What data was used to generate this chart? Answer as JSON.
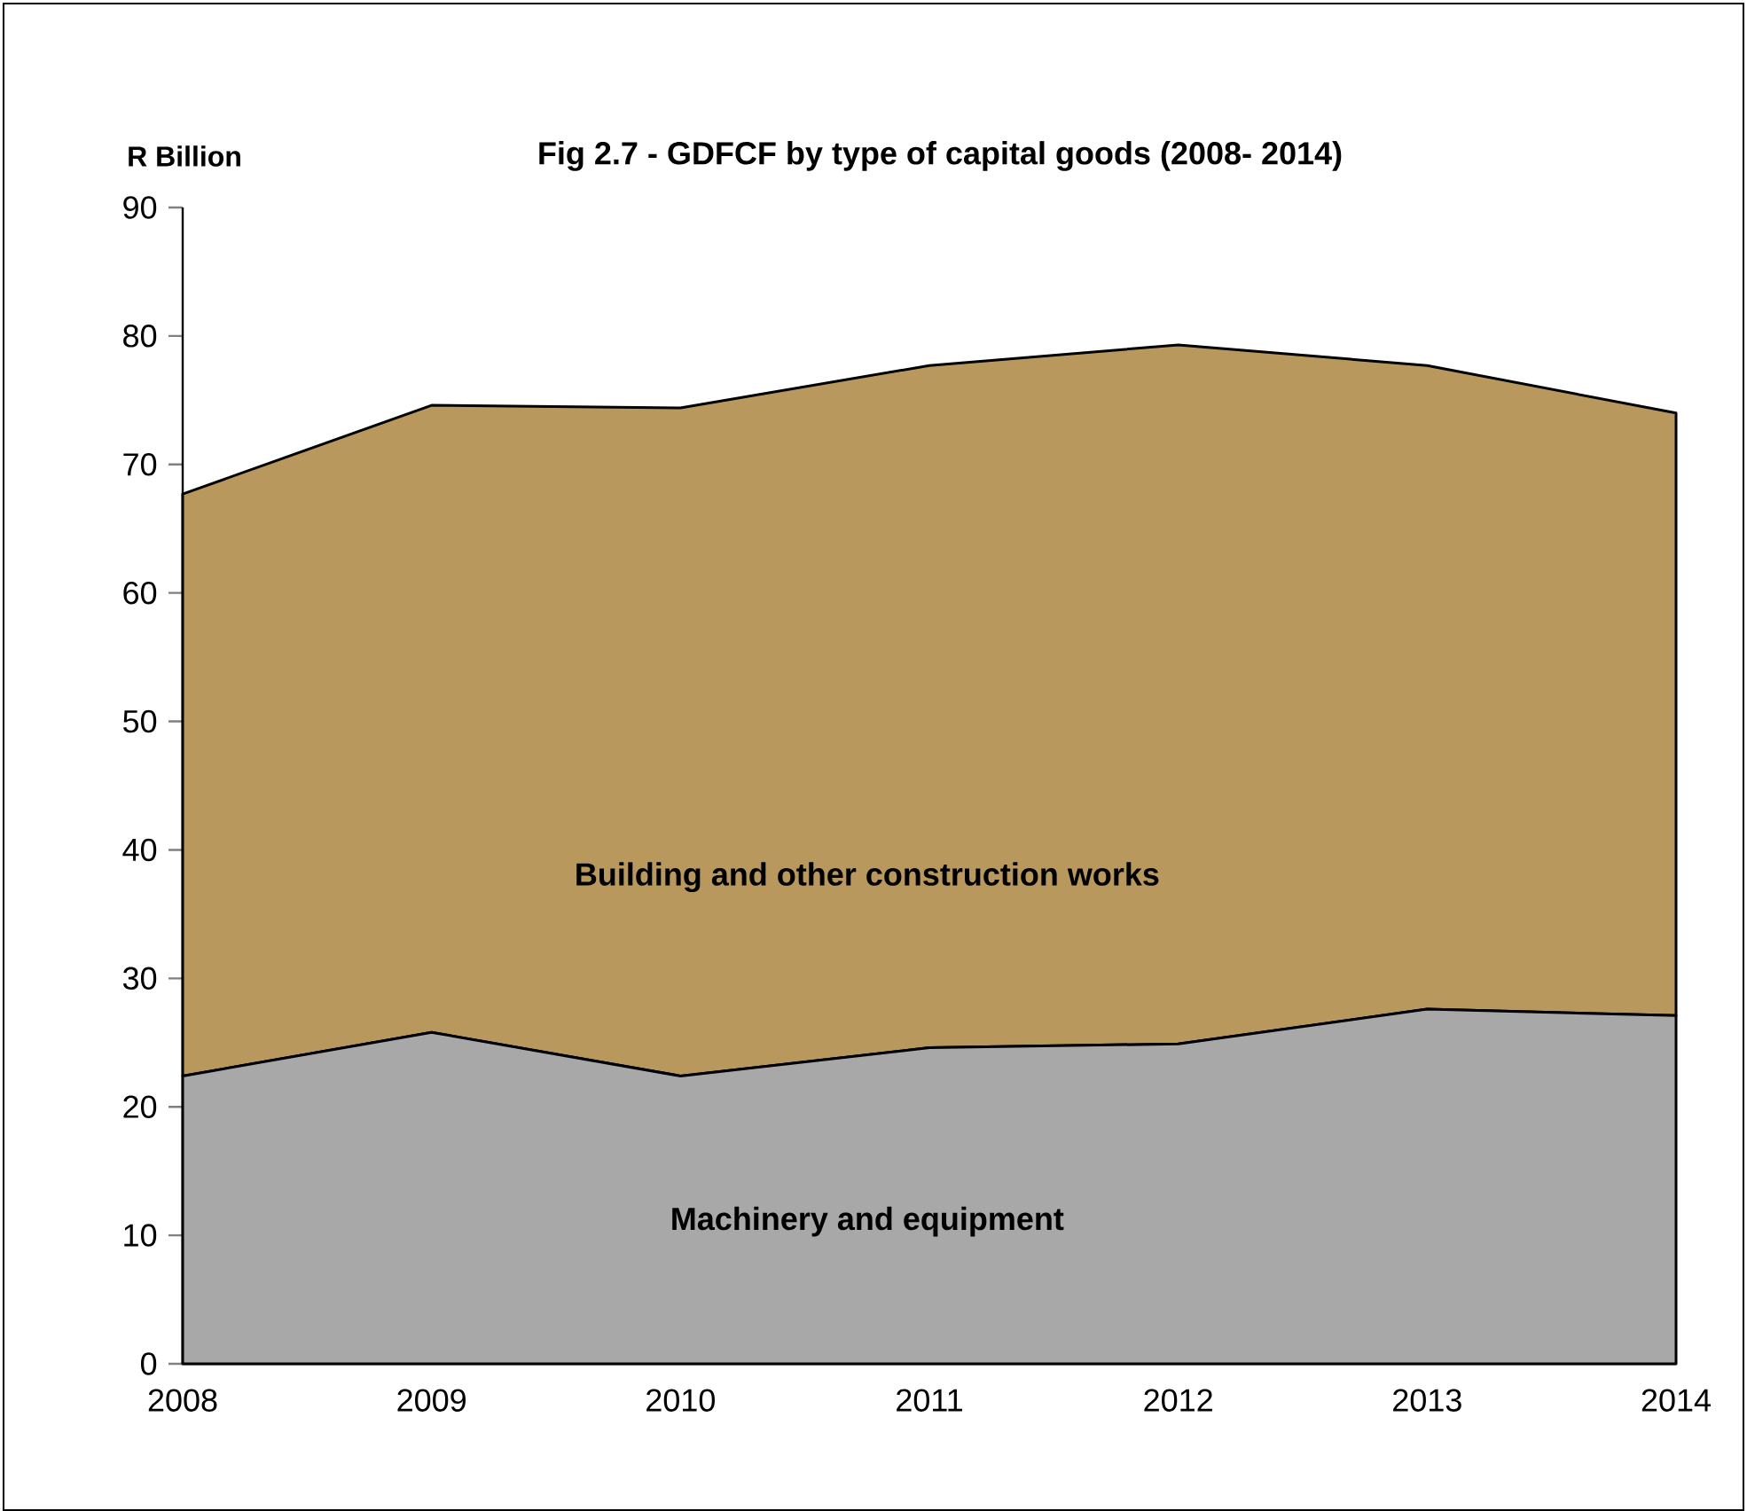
{
  "chart_data": {
    "type": "area",
    "title": "Fig 2.7 - GDFCF by type of capital goods (2008- 2014)",
    "ylabel": "R Billion",
    "categories": [
      "2008",
      "2009",
      "2010",
      "2011",
      "2012",
      "2013",
      "2014"
    ],
    "stacked": true,
    "series": [
      {
        "name": "Machinery and equipment",
        "color": "#a8a8a8",
        "values": [
          22.4,
          25.8,
          22.4,
          24.6,
          24.9,
          27.6,
          27.1
        ]
      },
      {
        "name": "Building and other construction works",
        "color": "#b8985c",
        "values": [
          45.3,
          48.8,
          52.0,
          53.1,
          54.4,
          50.1,
          46.9
        ]
      }
    ],
    "ylim": [
      0,
      90
    ],
    "yticks": [
      0,
      10,
      20,
      30,
      40,
      50,
      60,
      70,
      80,
      90
    ],
    "grid": false,
    "legend": false
  }
}
